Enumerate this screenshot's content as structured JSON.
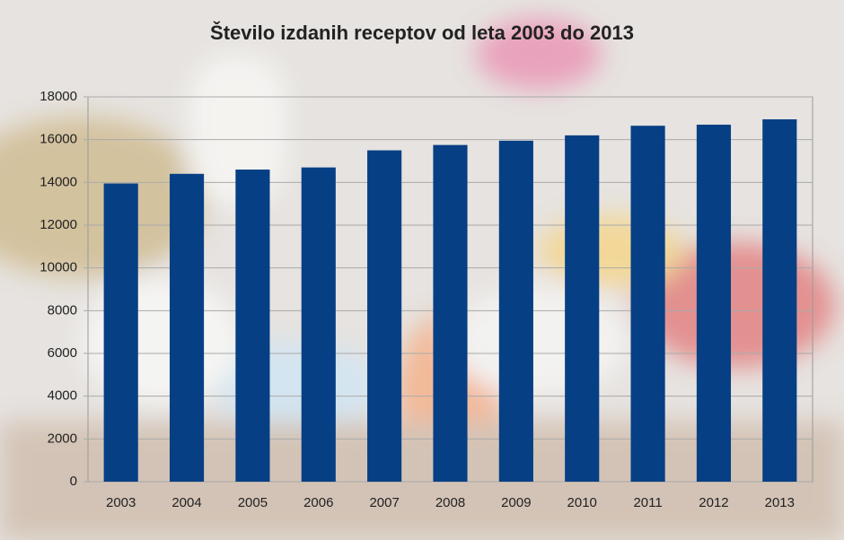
{
  "chart_data": {
    "type": "bar",
    "title": "Število izdanih receptov od leta 2003 do 2013",
    "categories": [
      "2003",
      "2004",
      "2005",
      "2006",
      "2007",
      "2008",
      "2009",
      "2010",
      "2011",
      "2012",
      "2013"
    ],
    "values": [
      13950,
      14400,
      14600,
      14700,
      15500,
      15750,
      15950,
      16200,
      16650,
      16700,
      16950
    ],
    "color": "#063f84",
    "ylim": [
      0,
      18000
    ],
    "yticks": [
      0,
      2000,
      4000,
      6000,
      8000,
      10000,
      12000,
      14000,
      16000,
      18000
    ],
    "grid": true
  }
}
